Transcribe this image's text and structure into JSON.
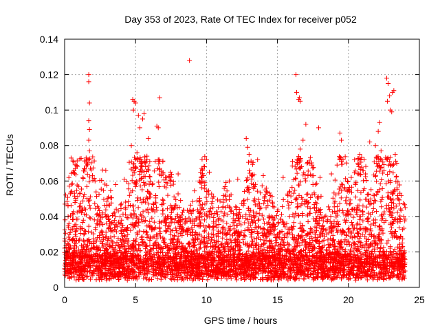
{
  "chart_data": {
    "type": "scatter",
    "title": "Day 353 of 2023, Rate Of TEC Index for receiver p052",
    "xlabel": "GPS time / hours",
    "ylabel": "ROTI / TECUs",
    "xlim": [
      0,
      25
    ],
    "ylim": [
      0,
      0.14
    ],
    "xticks": [
      0,
      5,
      10,
      15,
      20,
      25
    ],
    "yticks": [
      0,
      0.02,
      0.04,
      0.06,
      0.08,
      0.1,
      0.12,
      0.14
    ],
    "xtick_labels": [
      "0",
      "5",
      "10",
      "15",
      "20",
      "25"
    ],
    "ytick_labels": [
      "0",
      "0.02",
      "0.04",
      "0.06",
      "0.08",
      "0.1",
      "0.12",
      "0.14"
    ],
    "grid": true,
    "marker": "+",
    "color": "#ff0000",
    "series": [
      {
        "points": [
          [
            1.7,
            0.12
          ],
          [
            1.7,
            0.116
          ],
          [
            1.75,
            0.104
          ],
          [
            1.7,
            0.094
          ],
          [
            1.75,
            0.089
          ],
          [
            1.7,
            0.083
          ],
          [
            1.75,
            0.077
          ],
          [
            1.7,
            0.072
          ],
          [
            4.8,
            0.106
          ],
          [
            4.9,
            0.105
          ],
          [
            5.0,
            0.104
          ],
          [
            4.85,
            0.1
          ],
          [
            5.2,
            0.097
          ],
          [
            5.3,
            0.09
          ],
          [
            5.5,
            0.095
          ],
          [
            5.6,
            0.098
          ],
          [
            6.5,
            0.091
          ],
          [
            6.6,
            0.09
          ],
          [
            6.7,
            0.107
          ],
          [
            5.9,
            0.084
          ],
          [
            4.7,
            0.08
          ],
          [
            5.1,
            0.076
          ],
          [
            5.8,
            0.074
          ],
          [
            6.0,
            0.071
          ],
          [
            8.8,
            0.128
          ],
          [
            16.3,
            0.12
          ],
          [
            16.35,
            0.11
          ],
          [
            16.5,
            0.106
          ],
          [
            16.6,
            0.105
          ],
          [
            16.55,
            0.107
          ],
          [
            17.0,
            0.092
          ],
          [
            17.9,
            0.09
          ],
          [
            22.7,
            0.118
          ],
          [
            22.8,
            0.115
          ],
          [
            22.9,
            0.108
          ],
          [
            22.75,
            0.105
          ],
          [
            23.2,
            0.111
          ],
          [
            23.1,
            0.11
          ],
          [
            23.05,
            0.099
          ],
          [
            22.95,
            0.1
          ],
          [
            22.2,
            0.093
          ],
          [
            22.1,
            0.088
          ],
          [
            21.9,
            0.08
          ],
          [
            21.5,
            0.082
          ],
          [
            22.3,
            0.077
          ],
          [
            23.3,
            0.075
          ],
          [
            23.4,
            0.07
          ],
          [
            19.4,
            0.087
          ],
          [
            19.5,
            0.083
          ],
          [
            16.8,
            0.083
          ],
          [
            16.6,
            0.078
          ],
          [
            12.8,
            0.084
          ],
          [
            12.9,
            0.079
          ],
          [
            13.0,
            0.075
          ],
          [
            13.6,
            0.072
          ],
          [
            10.0,
            0.072
          ],
          [
            9.7,
            0.066
          ],
          [
            9.8,
            0.063
          ],
          [
            10.2,
            0.065
          ],
          [
            9.5,
            0.06
          ],
          [
            6.8,
            0.063
          ],
          [
            7.1,
            0.062
          ],
          [
            7.5,
            0.062
          ],
          [
            8.0,
            0.064
          ],
          [
            0.3,
            0.062
          ],
          [
            0.6,
            0.065
          ],
          [
            0.75,
            0.067
          ],
          [
            2.9,
            0.066
          ],
          [
            3.6,
            0.058
          ],
          [
            4.2,
            0.061
          ],
          [
            11.6,
            0.06
          ],
          [
            12.2,
            0.061
          ],
          [
            14.0,
            0.063
          ],
          [
            15.4,
            0.062
          ],
          [
            18.0,
            0.062
          ],
          [
            18.8,
            0.064
          ],
          [
            20.2,
            0.062
          ],
          [
            21.2,
            0.064
          ],
          [
            24.0,
            0.045
          ],
          [
            23.9,
            0.04
          ],
          [
            8.9,
            0.043
          ],
          [
            11.5,
            0.046
          ],
          [
            14.6,
            0.04
          ],
          [
            2.5,
            0.04
          ],
          [
            13.3,
            0.058
          ],
          [
            17.5,
            0.058
          ],
          [
            20.8,
            0.075
          ],
          [
            19.2,
            0.069
          ]
        ]
      }
    ]
  }
}
